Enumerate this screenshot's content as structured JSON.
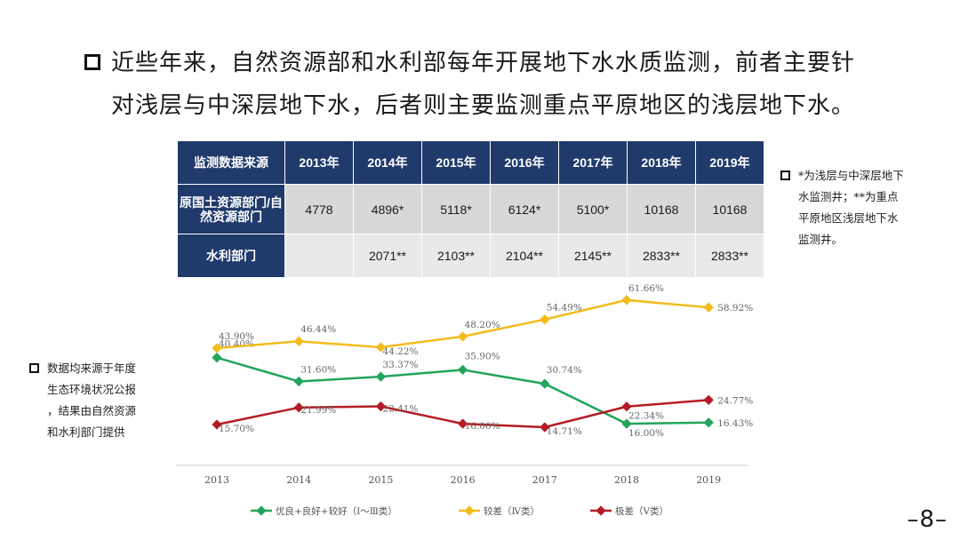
{
  "headline": {
    "line1": "近些年来，自然资源部和水利部每年开展地下水水质监测，前者主要针",
    "line2": "对浅层与中深层地下水，后者则主要监测重点平原地区的浅层地下水。"
  },
  "table": {
    "header": [
      "监测数据来源",
      "2013年",
      "2014年",
      "2015年",
      "2016年",
      "2017年",
      "2018年",
      "2019年"
    ],
    "rows": [
      {
        "label": "原国土资源部门/自然资源部门",
        "cells": [
          "4778",
          "4896*",
          "5118*",
          "6124*",
          "5100*",
          "10168",
          "10168"
        ]
      },
      {
        "label": "水利部门",
        "cells": [
          "",
          "2071**",
          "2103**",
          "2104**",
          "2145**",
          "2833**",
          "2833**"
        ]
      }
    ]
  },
  "notes": {
    "right_lines": [
      "*为浅层与中深层地下",
      "水监测井；**为重点",
      "平原地区浅层地下水",
      "监测井。"
    ],
    "left_lines": [
      "数据均来源于年度",
      "生态环境状况公报",
      "，结果由自然资源",
      "和水利部门提供"
    ]
  },
  "chart_data": {
    "type": "line",
    "x": [
      "2013",
      "2014",
      "2015",
      "2016",
      "2017",
      "2018",
      "2019"
    ],
    "ylim": [
      0,
      70
    ],
    "grid": false,
    "legend": "bottom",
    "series": [
      {
        "name": "优良+良好+较好（Ⅰ～Ⅲ类）",
        "color": "#22a55a",
        "values": [
          40.4,
          31.6,
          33.37,
          35.9,
          30.74,
          16.0,
          16.43
        ],
        "labels": [
          "40.40%",
          "31.60%",
          "33.37%",
          "35.90%",
          "30.74%",
          "16.00%",
          "16.43%"
        ]
      },
      {
        "name": "较差（Ⅳ类）",
        "color": "#f2bc1b",
        "values": [
          43.9,
          46.44,
          44.22,
          48.2,
          54.49,
          61.66,
          58.92
        ],
        "labels": [
          "43.90%",
          "46.44%",
          "44.22%",
          "48.20%",
          "54.49%",
          "61.66%",
          "58.92%"
        ]
      },
      {
        "name": "极差（Ⅴ类）",
        "color": "#b51c24",
        "values": [
          15.7,
          21.99,
          22.41,
          16.0,
          14.71,
          22.34,
          24.77
        ],
        "labels": [
          "15.70%",
          "21.99%",
          "22.41%",
          "16.00%",
          "14.71%",
          "22.34%",
          "24.77%"
        ]
      }
    ]
  },
  "page_number": "–8–"
}
